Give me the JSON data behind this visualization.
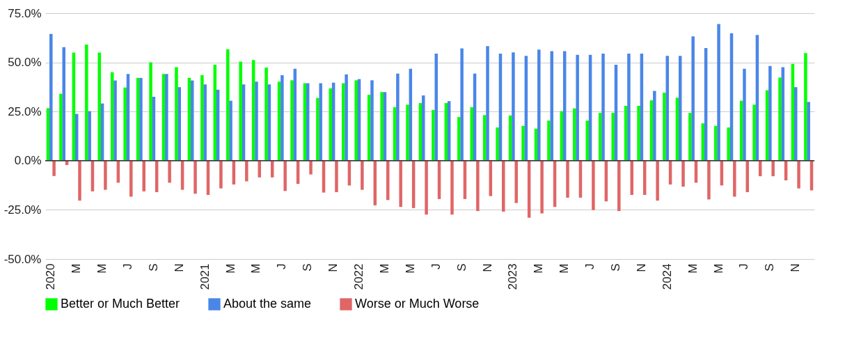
{
  "chart_data": {
    "type": "bar",
    "categories": [
      "2020",
      null,
      "M",
      null,
      "M",
      null,
      "J",
      null,
      "S",
      null,
      "N",
      null,
      "2021",
      null,
      "M",
      null,
      "M",
      null,
      "J",
      null,
      "S",
      null,
      "N",
      null,
      "2022",
      null,
      "M",
      null,
      "M",
      null,
      "J",
      null,
      "S",
      null,
      "N",
      null,
      "2023",
      null,
      "M",
      null,
      "M",
      null,
      "J",
      null,
      "S",
      null,
      "N",
      null,
      "2024",
      null,
      "M",
      null,
      "M",
      null,
      "J",
      null,
      "S",
      null,
      "N",
      null
    ],
    "series": [
      {
        "name": "Better or Much Better",
        "color": "#00ff00",
        "values": [
          26.7,
          34.0,
          55.0,
          59.1,
          55.0,
          45.0,
          37.2,
          42.1,
          50.0,
          44.1,
          47.6,
          42.1,
          43.5,
          48.8,
          56.7,
          50.4,
          51.2,
          47.4,
          40.2,
          40.9,
          39.4,
          31.9,
          36.8,
          39.4,
          40.9,
          33.5,
          34.9,
          27.2,
          28.5,
          29.3,
          25.8,
          29.3,
          22.2,
          27.2,
          23.2,
          16.9,
          23.0,
          17.7,
          16.3,
          20.4,
          25.2,
          26.6,
          20.4,
          24.3,
          24.3,
          27.9,
          27.9,
          30.7,
          34.6,
          32.0,
          24.3,
          19.0,
          17.7,
          16.9,
          30.5,
          28.5,
          35.8,
          42.3,
          49.2,
          54.7
        ]
      },
      {
        "name": "About the same",
        "color": "#4a86e8",
        "values": [
          64.5,
          57.7,
          23.8,
          25.2,
          29.1,
          40.8,
          44.1,
          42.1,
          32.5,
          44.1,
          37.4,
          40.8,
          38.8,
          36.1,
          30.5,
          38.8,
          40.2,
          38.8,
          43.5,
          46.8,
          39.4,
          39.4,
          39.7,
          43.9,
          41.5,
          40.9,
          34.9,
          44.3,
          46.8,
          33.2,
          54.5,
          30.3,
          57.1,
          44.3,
          58.3,
          54.5,
          55.1,
          53.3,
          56.5,
          55.7,
          55.7,
          53.8,
          53.8,
          54.5,
          48.8,
          54.5,
          54.5,
          35.5,
          53.3,
          53.3,
          63.2,
          57.3,
          69.5,
          64.8,
          46.8,
          63.9,
          48.2,
          47.6,
          37.4,
          29.9
        ]
      },
      {
        "name": "Worse or Much Worse",
        "color": "#e06666",
        "values": [
          -7.8,
          -2.2,
          -20.3,
          -15.6,
          -14.8,
          -11.2,
          -18.3,
          -15.6,
          -16.0,
          -11.2,
          -14.8,
          -16.8,
          -17.4,
          -14.1,
          -12.1,
          -10.5,
          -8.5,
          -8.5,
          -15.4,
          -11.8,
          -7.0,
          -16.2,
          -16.0,
          -12.6,
          -14.8,
          -22.7,
          -20.0,
          -23.5,
          -24.1,
          -27.4,
          -19.5,
          -27.4,
          -19.5,
          -25.6,
          -18.0,
          -25.9,
          -21.5,
          -29.0,
          -26.8,
          -23.5,
          -18.8,
          -18.8,
          -25.1,
          -20.7,
          -25.6,
          -17.4,
          -17.4,
          -20.3,
          -12.1,
          -13.2,
          -11.2,
          -19.7,
          -12.6,
          -18.3,
          -16.0,
          -7.9,
          -7.9,
          -10.0,
          -14.1,
          -15.1
        ]
      }
    ],
    "ylim": [
      -50,
      75
    ],
    "yticks": [
      {
        "value": -50,
        "label": "-50.0%"
      },
      {
        "value": -25,
        "label": "-25.0%"
      },
      {
        "value": 0,
        "label": "0.0%"
      },
      {
        "value": 25,
        "label": "25.0%"
      },
      {
        "value": 50,
        "label": "50.0%"
      },
      {
        "value": 75,
        "label": "75.0%"
      }
    ],
    "grid": "y",
    "legend": "bottom"
  }
}
